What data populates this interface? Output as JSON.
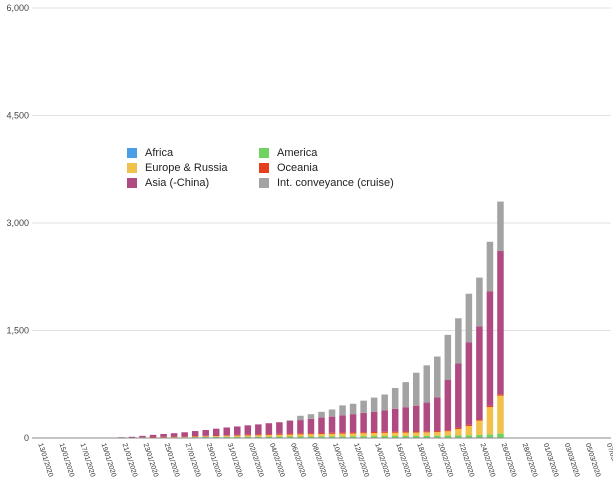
{
  "chart_data": {
    "type": "bar",
    "stacked": true,
    "title": "",
    "xlabel": "",
    "ylabel": "",
    "ylim": [
      0,
      6000
    ],
    "y_ticks": [
      "0",
      "1,500",
      "3,000",
      "4,500",
      "6,000"
    ],
    "y_tick_values": [
      0,
      1500,
      3000,
      4500,
      6000
    ],
    "grid": true,
    "legend_position": "top-center",
    "categories": [
      "13/01/2020",
      "14/01/2020",
      "15/01/2020",
      "16/01/2020",
      "17/01/2020",
      "18/01/2020",
      "19/01/2020",
      "20/01/2020",
      "21/01/2020",
      "22/01/2020",
      "23/01/2020",
      "24/01/2020",
      "25/01/2020",
      "26/01/2020",
      "27/01/2020",
      "28/01/2020",
      "29/01/2020",
      "30/01/2020",
      "31/01/2020",
      "01/02/2020",
      "02/02/2020",
      "03/02/2020",
      "04/02/2020",
      "05/02/2020",
      "06/02/2020",
      "07/02/2020",
      "08/02/2020",
      "09/02/2020",
      "10/02/2020",
      "11/02/2020",
      "12/02/2020",
      "13/02/2020",
      "14/02/2020",
      "15/02/2020",
      "16/02/2020",
      "17/02/2020",
      "18/02/2020",
      "19/02/2020",
      "20/02/2020",
      "21/02/2020",
      "22/02/2020",
      "23/02/2020",
      "24/02/2020",
      "25/02/2020",
      "26/02/2020",
      "27/02/2020",
      "28/02/2020",
      "29/02/2020",
      "01/03/2020",
      "02/03/2020",
      "03/03/2020",
      "04/03/2020",
      "05/03/2020",
      "06/03/2020",
      "07/03/2020"
    ],
    "x_tick_labels": [
      "13/01/2020",
      "15/01/2020",
      "17/01/2020",
      "19/01/2020",
      "21/01/2020",
      "23/01/2020",
      "25/01/2020",
      "27/01/2020",
      "29/01/2020",
      "31/01/2020",
      "02/02/2020",
      "04/02/2020",
      "06/02/2020",
      "08/02/2020",
      "10/02/2020",
      "12/02/2020",
      "14/02/2020",
      "16/02/2020",
      "18/02/2020",
      "20/02/2020",
      "22/02/2020",
      "24/02/2020",
      "26/02/2020",
      "28/02/2020",
      "01/03/2020",
      "03/03/2020",
      "05/03/2020",
      "07/03/2020"
    ],
    "series": [
      {
        "name": "Africa",
        "color": "#4a9ee6",
        "values": [
          0,
          0,
          0,
          0,
          0,
          0,
          0,
          0,
          0,
          0,
          0,
          0,
          0,
          0,
          0,
          0,
          0,
          0,
          0,
          0,
          0,
          0,
          0,
          0,
          0,
          0,
          0,
          0,
          0,
          0,
          0,
          0,
          1,
          1,
          1,
          1,
          1,
          1,
          1,
          1,
          1,
          1,
          1,
          1,
          1,
          0,
          0,
          0,
          0,
          0,
          0,
          0,
          0,
          0,
          0
        ]
      },
      {
        "name": "America",
        "color": "#6fd35f",
        "values": [
          0,
          0,
          0,
          0,
          0,
          0,
          0,
          0,
          3,
          5,
          7,
          8,
          9,
          10,
          12,
          13,
          14,
          15,
          16,
          17,
          18,
          18,
          19,
          20,
          21,
          22,
          22,
          23,
          24,
          24,
          25,
          26,
          26,
          27,
          27,
          28,
          28,
          30,
          31,
          33,
          35,
          37,
          42,
          50,
          60,
          0,
          0,
          0,
          0,
          0,
          0,
          0,
          0,
          0,
          0
        ]
      },
      {
        "name": "Europe & Russia",
        "color": "#f0c24b",
        "values": [
          0,
          0,
          0,
          0,
          0,
          0,
          0,
          0,
          0,
          0,
          0,
          2,
          3,
          4,
          5,
          8,
          10,
          12,
          14,
          16,
          18,
          20,
          22,
          24,
          26,
          28,
          30,
          32,
          34,
          36,
          38,
          40,
          42,
          44,
          45,
          46,
          47,
          48,
          50,
          60,
          90,
          130,
          200,
          380,
          530,
          0,
          0,
          0,
          0,
          0,
          0,
          0,
          0,
          0,
          0
        ]
      },
      {
        "name": "Oceania",
        "color": "#e6411f",
        "values": [
          0,
          0,
          0,
          0,
          0,
          0,
          0,
          0,
          0,
          0,
          3,
          4,
          4,
          5,
          5,
          6,
          7,
          8,
          9,
          10,
          11,
          12,
          13,
          14,
          15,
          15,
          15,
          15,
          15,
          15,
          15,
          15,
          15,
          15,
          15,
          15,
          15,
          15,
          15,
          15,
          15,
          15,
          15,
          17,
          18,
          0,
          0,
          0,
          0,
          0,
          0,
          0,
          0,
          0,
          0
        ]
      },
      {
        "name": "Asia (-China)",
        "color": "#b04a82",
        "values": [
          1,
          1,
          2,
          2,
          3,
          3,
          4,
          5,
          8,
          12,
          20,
          30,
          40,
          48,
          58,
          70,
          80,
          95,
          108,
          118,
          130,
          140,
          152,
          162,
          175,
          185,
          200,
          215,
          225,
          240,
          255,
          270,
          280,
          300,
          320,
          340,
          360,
          400,
          470,
          700,
          900,
          1150,
          1300,
          1600,
          2000,
          0,
          0,
          0,
          0,
          0,
          0,
          0,
          0,
          0,
          0
        ]
      },
      {
        "name": "Int. conveyance (cruise)",
        "color": "#a3a3a3",
        "values": [
          0,
          0,
          0,
          0,
          0,
          0,
          0,
          0,
          0,
          0,
          0,
          0,
          0,
          0,
          0,
          0,
          0,
          0,
          0,
          0,
          0,
          0,
          0,
          0,
          10,
          60,
          65,
          80,
          100,
          140,
          145,
          170,
          200,
          220,
          290,
          350,
          460,
          520,
          570,
          630,
          630,
          680,
          680,
          690,
          690,
          0,
          0,
          0,
          0,
          0,
          0,
          0,
          0,
          0,
          0
        ]
      }
    ],
    "legend_order": [
      "Africa",
      "America",
      "Europe & Russia",
      "Oceania",
      "Asia (-China)",
      "Int. conveyance (cruise)"
    ]
  }
}
